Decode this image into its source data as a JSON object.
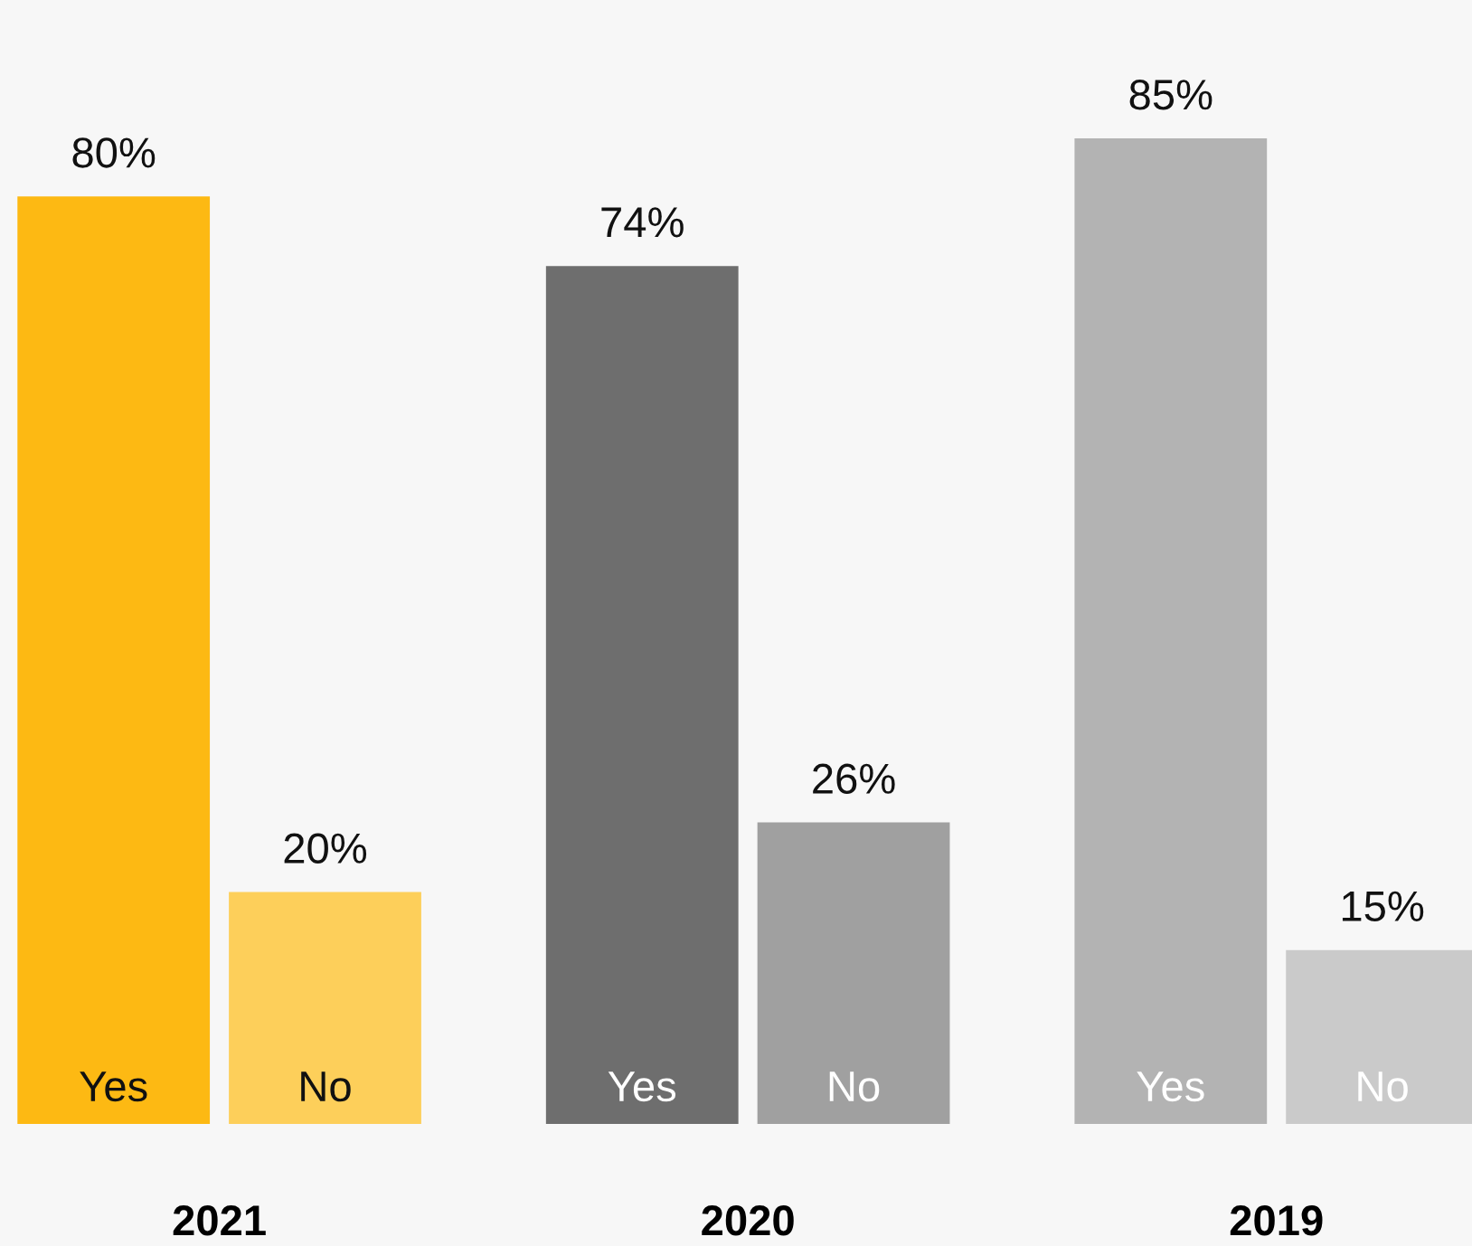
{
  "chart_data": {
    "type": "bar",
    "categories": [
      "2021",
      "2020",
      "2019"
    ],
    "series": [
      {
        "name": "Yes",
        "colors": [
          "#fdb913",
          "#6e6e6e",
          "#b3b3b3"
        ],
        "values": [
          80,
          74,
          85
        ],
        "value_labels": [
          "80%",
          "74%",
          "85%"
        ]
      },
      {
        "name": "No",
        "colors": [
          "#fdcf5a",
          "#a0a0a0",
          "#cacaca"
        ],
        "values": [
          20,
          26,
          15
        ],
        "value_labels": [
          "20%",
          "26%",
          "15%"
        ]
      }
    ],
    "legend": false,
    "grid": false
  }
}
